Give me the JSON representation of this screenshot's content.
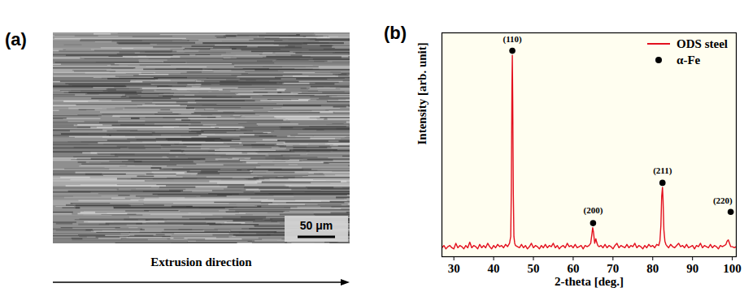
{
  "chart_data": [
    {
      "type": "micrograph",
      "panel_label": "(a)",
      "scale_bar": "50 μm",
      "xlabel": "Extrusion direction"
    },
    {
      "type": "line",
      "panel_label": "(b)",
      "xlabel": "2-theta [deg.]",
      "ylabel": "Intensity [arb. unit]",
      "xlim": [
        27,
        101
      ],
      "xticks": [
        30,
        40,
        50,
        60,
        70,
        80,
        90,
        100
      ],
      "ylim": [
        0,
        100
      ],
      "yticks": [],
      "tick_labels": "x",
      "legend": "upper right",
      "series": [
        {
          "name": "ODS steel",
          "type": "line",
          "color": "#e3101e",
          "line_style": "solid",
          "x": [
            27,
            27.5,
            28,
            28.5,
            29,
            29.5,
            30,
            30.5,
            31,
            31.5,
            32,
            32.5,
            33,
            33.5,
            34,
            34.5,
            35,
            35.5,
            36,
            36.5,
            37,
            37.5,
            38,
            38.5,
            39,
            39.5,
            40,
            40.5,
            41,
            41.5,
            42,
            42.5,
            43,
            43.5,
            44,
            44.3,
            44.45,
            44.6,
            44.7,
            44.8,
            44.95,
            45.1,
            45.3,
            45.5,
            46,
            46.5,
            47,
            47.5,
            48,
            48.5,
            49,
            49.5,
            50,
            50.5,
            51,
            51.5,
            52,
            52.5,
            53,
            53.5,
            54,
            54.5,
            55,
            55.5,
            56,
            56.5,
            57,
            57.5,
            58,
            58.5,
            59,
            59.5,
            60,
            60.5,
            61,
            61.5,
            62,
            62.5,
            63,
            63.5,
            64,
            64.4,
            64.7,
            64.9,
            65.1,
            65.4,
            65.7,
            65.9,
            66.2,
            66.5,
            67,
            67.5,
            68,
            68.5,
            69,
            69.5,
            70,
            70.5,
            71,
            71.5,
            72,
            72.5,
            73,
            73.5,
            74,
            74.5,
            75,
            75.5,
            76,
            76.5,
            77,
            77.5,
            78,
            78.5,
            79,
            79.5,
            80,
            80.5,
            81,
            81.5,
            81.8,
            82.05,
            82.25,
            82.45,
            82.6,
            82.8,
            83.05,
            83.3,
            83.5,
            84,
            84.5,
            85,
            85.5,
            86,
            86.5,
            87,
            87.5,
            88,
            88.5,
            89,
            89.5,
            90,
            90.5,
            91,
            91.5,
            92,
            92.5,
            93,
            93.5,
            94,
            94.5,
            95,
            95.5,
            96,
            96.5,
            97,
            97.5,
            98,
            98.4,
            98.7,
            99,
            99.3,
            99.6,
            100,
            100.5,
            101
          ],
          "values": [
            4,
            5,
            3.5,
            4.5,
            5,
            4,
            3.5,
            6,
            4,
            5,
            4.5,
            3.5,
            5,
            4,
            6.5,
            4,
            5,
            4.5,
            3.5,
            5.5,
            4,
            5,
            4,
            6,
            4.5,
            3.5,
            5,
            4,
            5.5,
            4.5,
            5,
            4,
            5.5,
            4.5,
            6,
            9,
            30,
            75,
            90,
            70,
            28,
            9,
            6,
            5,
            4.5,
            4,
            5.5,
            4,
            5,
            3.5,
            4.5,
            6,
            4,
            5,
            4.5,
            3.5,
            5,
            4,
            5.5,
            4,
            5,
            4.5,
            6,
            4,
            5,
            3.5,
            4.5,
            5,
            4,
            6,
            4.5,
            5,
            4,
            5.5,
            4,
            4.5,
            5,
            3.5,
            5,
            4.5,
            5,
            6,
            10,
            13,
            11,
            6,
            8,
            6.5,
            5,
            4.5,
            5,
            4,
            5.5,
            4,
            5,
            4.5,
            3.5,
            5,
            6,
            4,
            5,
            4.5,
            4,
            5.5,
            4,
            5,
            4.5,
            6,
            4,
            5,
            4.5,
            3.5,
            5,
            4,
            5.5,
            4.5,
            5,
            4,
            5.5,
            5,
            7,
            14,
            27,
            31,
            25,
            12,
            7,
            5.5,
            5,
            4,
            5.5,
            4.5,
            4,
            5,
            6,
            4.5,
            5,
            4,
            5.5,
            4,
            4.5,
            5,
            3.5,
            5,
            4.5,
            6,
            4,
            5,
            4.5,
            4,
            5.5,
            4,
            5,
            4.5,
            3.5,
            5,
            4.5,
            5,
            5.5,
            7,
            7.5,
            6,
            4.5,
            4.5,
            4,
            4.5
          ]
        },
        {
          "name": "α-Fe",
          "type": "scatter",
          "color": "#000000",
          "marker": "circle",
          "x": [
            44.7,
            65.0,
            82.45,
            99.6
          ],
          "values": [
            92,
            15,
            33,
            20
          ]
        }
      ],
      "annotations": [
        {
          "x": 44.7,
          "y": 97,
          "text": "(110)"
        },
        {
          "x": 65.0,
          "y": 20.5,
          "text": "(200)"
        },
        {
          "x": 82.45,
          "y": 38.5,
          "text": "(211)"
        },
        {
          "x": 97.6,
          "y": 25,
          "text": "(220)"
        }
      ]
    }
  ]
}
